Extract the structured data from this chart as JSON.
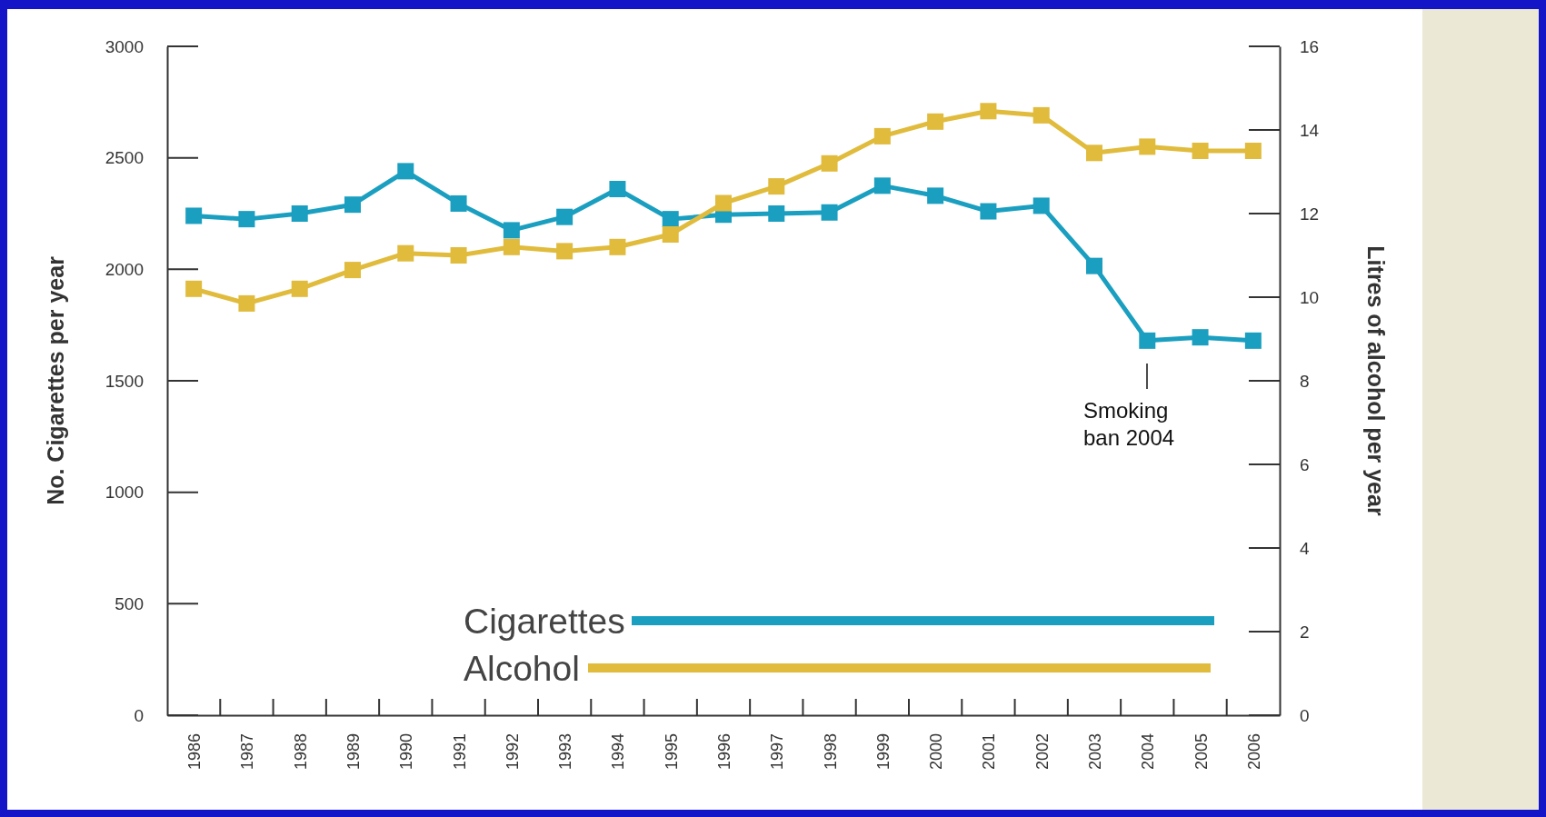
{
  "chart_data": {
    "type": "line",
    "xlabel": null,
    "ylabel": "No. Cigarettes per year",
    "y2label": "Litres of alcohol per year",
    "categories": [
      "1986",
      "1987",
      "1988",
      "1989",
      "1990",
      "1991",
      "1992",
      "1993",
      "1994",
      "1995",
      "1996",
      "1997",
      "1998",
      "1999",
      "2000",
      "2001",
      "2002",
      "2003",
      "2004",
      "2005",
      "2006"
    ],
    "series": [
      {
        "name": "Cigarettes",
        "color": "#1a9fc0",
        "values": [
          2240,
          2225,
          2250,
          2290,
          2440,
          2295,
          2175,
          2235,
          2360,
          2225,
          2245,
          2250,
          2255,
          2375,
          2330,
          2260,
          2285,
          2015,
          1680,
          1695,
          1680
        ]
      },
      {
        "name": "Alcohol",
        "color": "#e0bb3c",
        "axis": "y2",
        "values": [
          10.2,
          9.85,
          10.2,
          10.65,
          11.05,
          11.0,
          11.2,
          11.1,
          11.2,
          11.5,
          12.25,
          12.65,
          13.2,
          13.85,
          14.2,
          14.45,
          14.35,
          13.45,
          13.6,
          13.5,
          13.5
        ]
      }
    ],
    "ylim": [
      0,
      3000
    ],
    "yticks": [
      0,
      500,
      1000,
      1500,
      2000,
      2500,
      3000
    ],
    "y2lim": [
      0,
      16
    ],
    "y2ticks": [
      0,
      2,
      4,
      6,
      8,
      10,
      12,
      14,
      16
    ],
    "annotations": [
      "Smoking ban 2004"
    ],
    "grid": false,
    "legend": "bottom",
    "marker": "square",
    "line_style": "solid"
  }
}
